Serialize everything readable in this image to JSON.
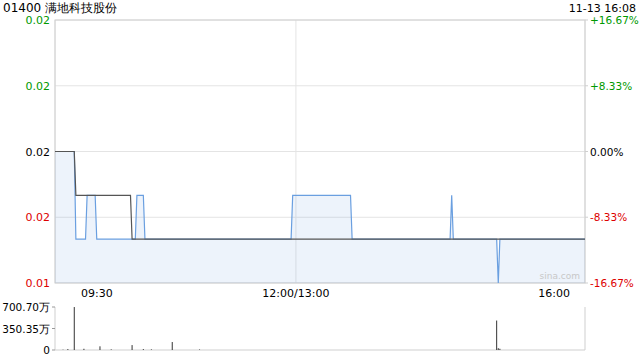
{
  "chart_data": [
    {
      "type": "line",
      "title": "01400 满地科技股份",
      "subtitle": "11-13 16:08",
      "annotations": [
        "sina.com"
      ],
      "xlim": [
        0,
        330
      ],
      "xticks": [
        {
          "value": 0,
          "label": "09:30"
        },
        {
          "value": 150,
          "label": "12:00/13:00"
        },
        {
          "value": 330,
          "label": "16:00"
        }
      ],
      "ylim": [
        0.015,
        0.021
      ],
      "yticks": [
        {
          "value": 0.015,
          "label": "0.01"
        },
        {
          "value": 0.0165,
          "label": "0.02"
        },
        {
          "value": 0.018,
          "label": "0.02"
        },
        {
          "value": 0.0195,
          "label": "0.02"
        },
        {
          "value": 0.021,
          "label": "0.02"
        }
      ],
      "y2lim": [
        -16.67,
        16.67
      ],
      "y2ticks": [
        {
          "value": -16.67,
          "label": "-16.67%"
        },
        {
          "value": -8.33,
          "label": "-8.33%"
        },
        {
          "value": 0,
          "label": "0.00%"
        },
        {
          "value": 8.33,
          "label": "+8.33%"
        },
        {
          "value": 16.67,
          "label": "+16.67%"
        }
      ],
      "grid": true,
      "series": [
        {
          "type": "area",
          "color": "#6a9fe0",
          "x": [
            0,
            12,
            13,
            19,
            20,
            25,
            26,
            50,
            51,
            55,
            56,
            147,
            148,
            184,
            185,
            246,
            247,
            248,
            275,
            276,
            277,
            330
          ],
          "values": [
            0.018,
            0.018,
            0.016,
            0.016,
            0.017,
            0.017,
            0.016,
            0.016,
            0.017,
            0.017,
            0.016,
            0.016,
            0.017,
            0.017,
            0.016,
            0.016,
            0.017,
            0.016,
            0.016,
            0.015,
            0.016,
            0.016
          ]
        },
        {
          "type": "line",
          "color": "#555555",
          "x": [
            0,
            12,
            13,
            47,
            48,
            330
          ],
          "values": [
            0.018,
            0.018,
            0.017,
            0.017,
            0.016,
            0.016
          ]
        }
      ]
    },
    {
      "type": "bar",
      "xlim": [
        0,
        330
      ],
      "ylim": [
        0,
        700.7
      ],
      "yticks": [
        0,
        {
          "value": 350.35,
          "label": "350.35万"
        },
        {
          "value": 700.7,
          "label": "700.70万"
        }
      ],
      "tick_labels": "y",
      "color": "#333333",
      "series": [
        {
          "x": [
            5,
            8,
            12,
            18,
            28,
            35,
            48,
            55,
            60,
            73,
            90,
            275,
            276,
            277
          ],
          "values": [
            5,
            15,
            700,
            20,
            60,
            10,
            80,
            15,
            10,
            130,
            8,
            480,
            30,
            20
          ]
        }
      ]
    }
  ]
}
